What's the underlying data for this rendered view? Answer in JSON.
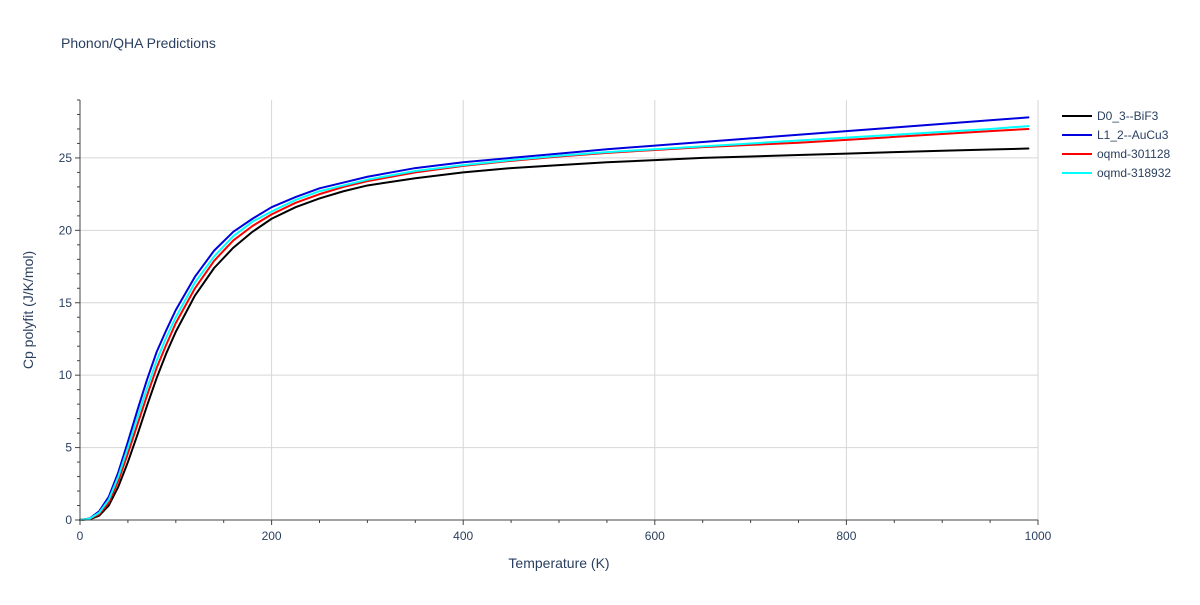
{
  "chart_data": {
    "type": "line",
    "title": "Phonon/QHA Predictions",
    "xlabel": "Temperature (K)",
    "ylabel": "Cp polyfit (J/K/mol)",
    "xlim": [
      0,
      1000
    ],
    "ylim": [
      0,
      29
    ],
    "xticks": [
      0,
      200,
      400,
      600,
      800,
      1000
    ],
    "yticks": [
      0,
      5,
      10,
      15,
      20,
      25
    ],
    "grid": true,
    "legend_position": "top-right",
    "series": [
      {
        "name": "D0_3--BiF3",
        "color": "#000000",
        "x": [
          0,
          10,
          20,
          30,
          40,
          50,
          60,
          70,
          80,
          90,
          100,
          120,
          140,
          160,
          180,
          200,
          225,
          250,
          275,
          300,
          350,
          400,
          450,
          500,
          550,
          600,
          650,
          700,
          750,
          800,
          850,
          900,
          950,
          990
        ],
        "y": [
          0,
          0.05,
          0.3,
          1.0,
          2.3,
          4.0,
          5.9,
          7.9,
          9.8,
          11.5,
          13.0,
          15.5,
          17.4,
          18.8,
          19.9,
          20.8,
          21.6,
          22.2,
          22.7,
          23.1,
          23.6,
          24.0,
          24.3,
          24.5,
          24.7,
          24.85,
          25.0,
          25.1,
          25.2,
          25.3,
          25.4,
          25.5,
          25.58,
          25.65
        ]
      },
      {
        "name": "L1_2--AuCu3",
        "color": "#0000dd",
        "x": [
          0,
          10,
          20,
          30,
          40,
          50,
          60,
          70,
          80,
          90,
          100,
          120,
          140,
          160,
          180,
          200,
          225,
          250,
          275,
          300,
          350,
          400,
          450,
          500,
          550,
          600,
          650,
          700,
          750,
          800,
          850,
          900,
          950,
          990
        ],
        "y": [
          0,
          0.1,
          0.6,
          1.6,
          3.3,
          5.4,
          7.6,
          9.7,
          11.6,
          13.1,
          14.5,
          16.8,
          18.6,
          19.9,
          20.8,
          21.6,
          22.3,
          22.9,
          23.3,
          23.7,
          24.3,
          24.7,
          25.0,
          25.3,
          25.6,
          25.85,
          26.1,
          26.35,
          26.6,
          26.85,
          27.1,
          27.35,
          27.6,
          27.8
        ]
      },
      {
        "name": "oqmd-301128",
        "color": "#ff0000",
        "x": [
          0,
          10,
          20,
          30,
          40,
          50,
          60,
          70,
          80,
          90,
          100,
          120,
          140,
          160,
          180,
          200,
          225,
          250,
          275,
          300,
          350,
          400,
          450,
          500,
          550,
          600,
          650,
          700,
          750,
          800,
          850,
          900,
          950,
          990
        ],
        "y": [
          0,
          0.08,
          0.4,
          1.2,
          2.7,
          4.6,
          6.6,
          8.6,
          10.5,
          12.1,
          13.6,
          16.0,
          17.9,
          19.3,
          20.3,
          21.1,
          21.9,
          22.5,
          23.0,
          23.4,
          24.0,
          24.45,
          24.8,
          25.1,
          25.35,
          25.55,
          25.75,
          25.9,
          26.05,
          26.25,
          26.45,
          26.65,
          26.85,
          27.0
        ]
      },
      {
        "name": "oqmd-318932",
        "color": "#00ffff",
        "x": [
          0,
          10,
          20,
          30,
          40,
          50,
          60,
          70,
          80,
          90,
          100,
          120,
          140,
          160,
          180,
          200,
          225,
          250,
          275,
          300,
          350,
          400,
          450,
          500,
          550,
          600,
          650,
          700,
          750,
          800,
          850,
          900,
          950,
          990
        ],
        "y": [
          0,
          0.09,
          0.5,
          1.4,
          3.0,
          5.0,
          7.1,
          9.1,
          11.0,
          12.6,
          14.0,
          16.4,
          18.2,
          19.6,
          20.6,
          21.3,
          22.1,
          22.7,
          23.1,
          23.5,
          24.1,
          24.5,
          24.85,
          25.15,
          25.4,
          25.6,
          25.8,
          26.0,
          26.2,
          26.4,
          26.6,
          26.8,
          27.0,
          27.2
        ]
      }
    ]
  }
}
